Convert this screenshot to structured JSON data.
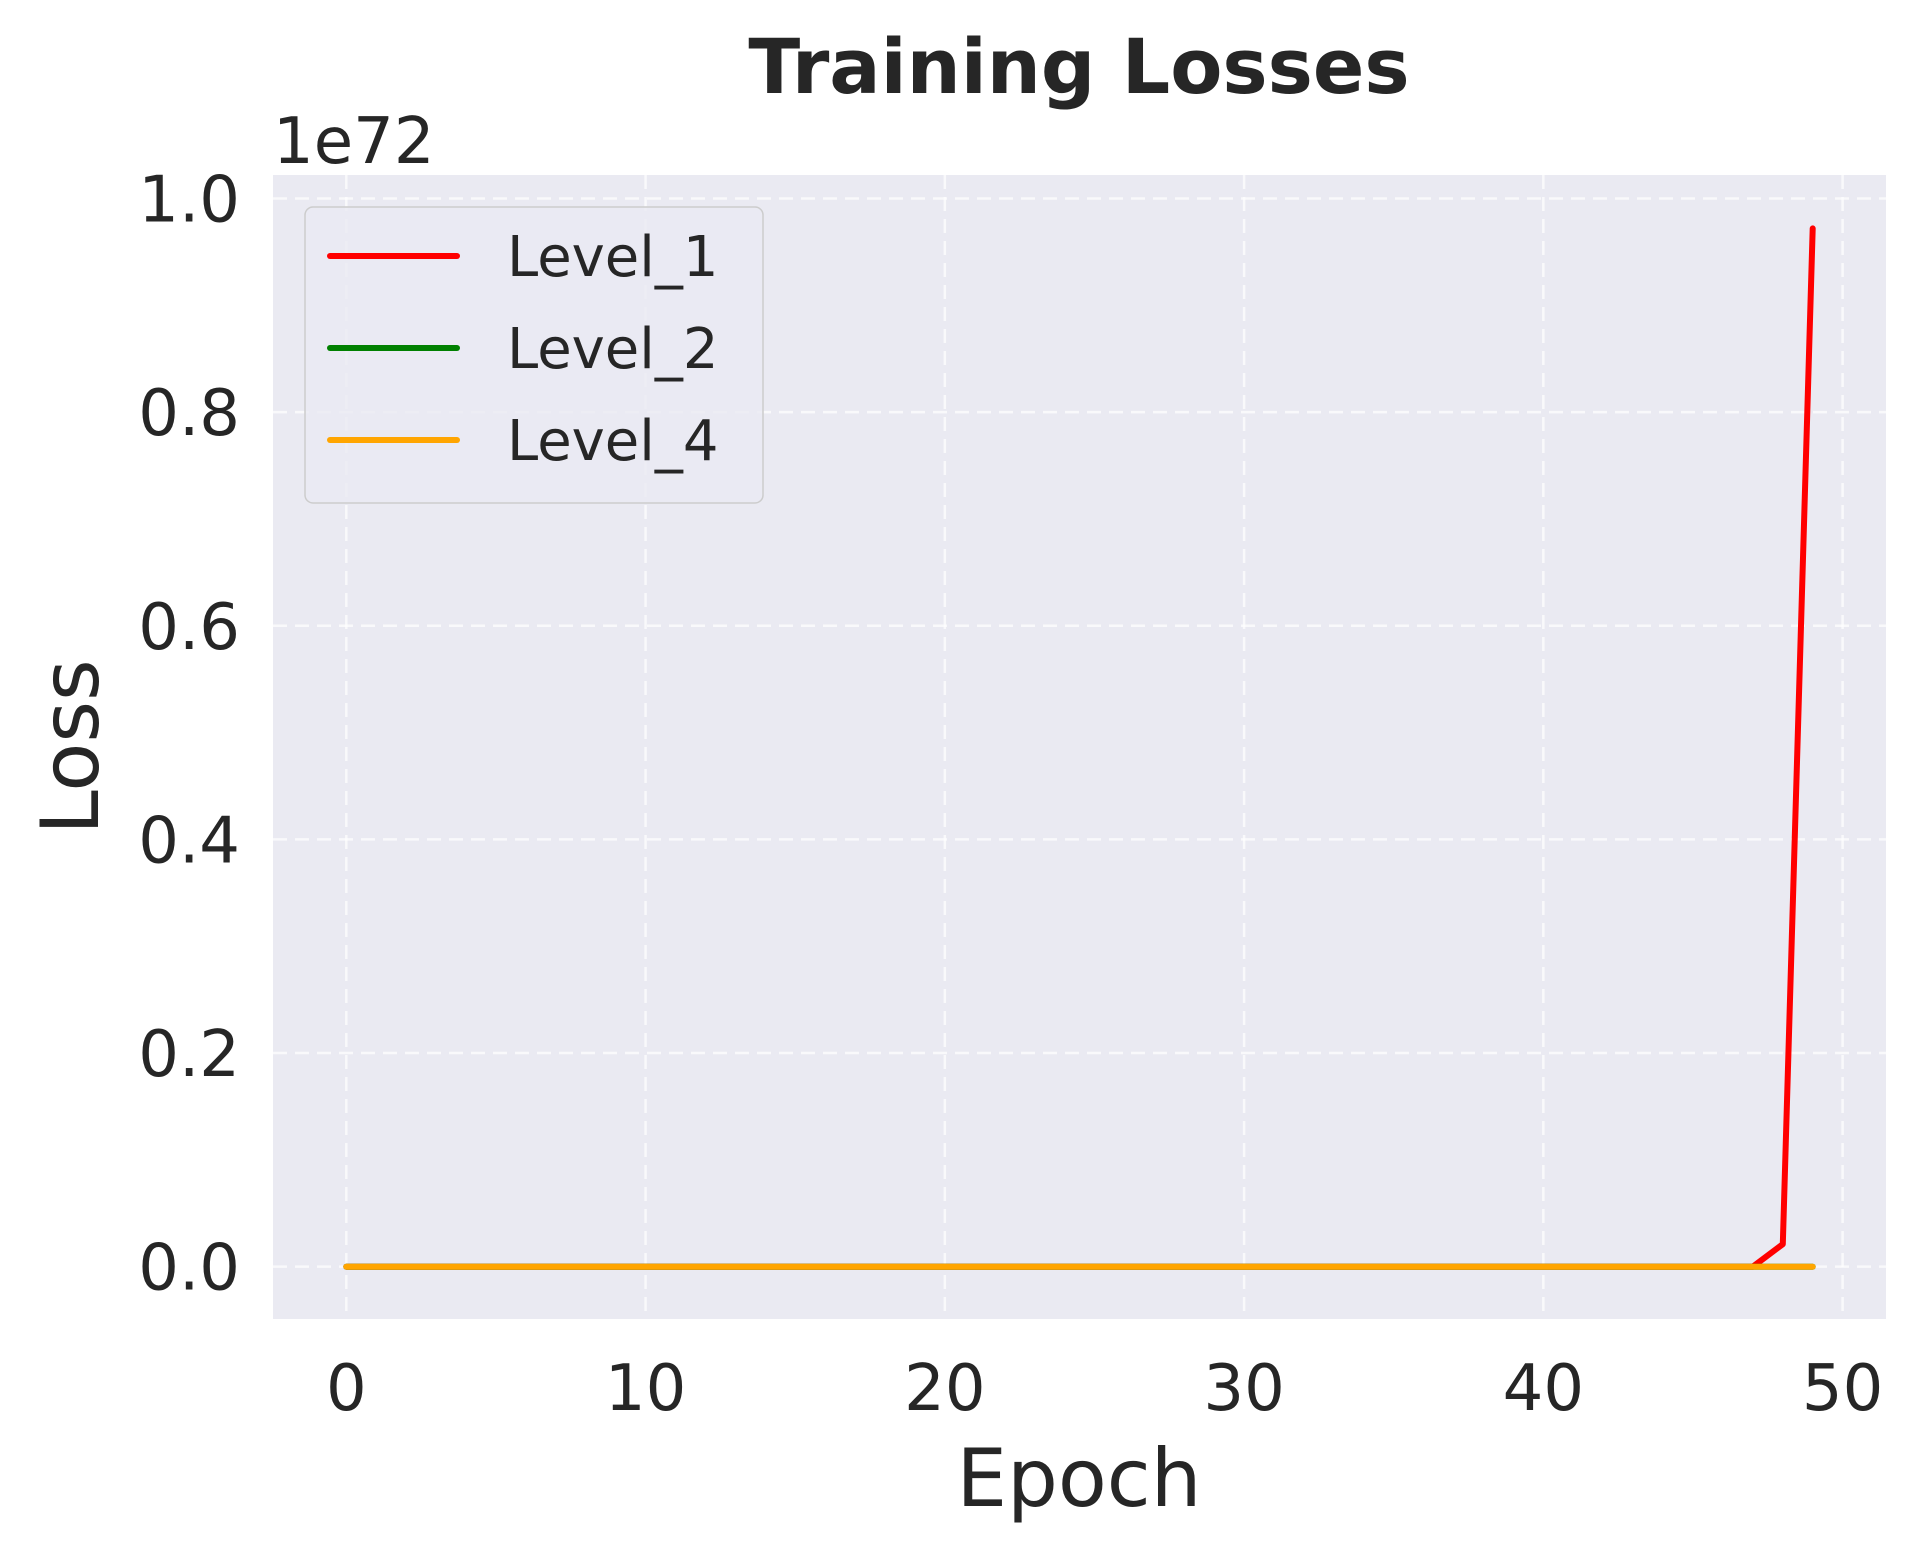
{
  "chart_data": {
    "type": "line",
    "title": "Training Losses",
    "xlabel": "Epoch",
    "ylabel": "Loss",
    "y_offset_label": "1e72",
    "xlim": [
      -2.45,
      51.45
    ],
    "ylim": [
      -0.049,
      1.022
    ],
    "x_ticks": [
      0,
      10,
      20,
      30,
      40,
      50
    ],
    "x_tick_labels": [
      "0",
      "10",
      "20",
      "30",
      "40",
      "50"
    ],
    "y_ticks": [
      0.0,
      0.2,
      0.4,
      0.6,
      0.8,
      1.0
    ],
    "y_tick_labels": [
      "0.0",
      "0.2",
      "0.4",
      "0.6",
      "0.8",
      "1.0"
    ],
    "grid": true,
    "legend_position": "upper left",
    "x": [
      0,
      1,
      2,
      3,
      4,
      5,
      6,
      7,
      8,
      9,
      10,
      11,
      12,
      13,
      14,
      15,
      16,
      17,
      18,
      19,
      20,
      21,
      22,
      23,
      24,
      25,
      26,
      27,
      28,
      29,
      30,
      31,
      32,
      33,
      34,
      35,
      36,
      37,
      38,
      39,
      40,
      41,
      42,
      43,
      44,
      45,
      46,
      47,
      48,
      49
    ],
    "series": [
      {
        "name": "Level_1",
        "color": "#ff0000",
        "values": [
          0,
          0,
          0,
          0,
          0,
          0,
          0,
          0,
          0,
          0,
          0,
          0,
          0,
          0,
          0,
          0,
          0,
          0,
          0,
          0,
          0,
          0,
          0,
          0,
          0,
          0,
          0,
          0,
          0,
          0,
          0,
          0,
          0,
          0,
          0,
          0,
          0,
          0,
          0,
          0,
          0,
          0,
          0,
          0,
          0,
          0,
          0,
          0,
          0.021,
          0.972
        ]
      },
      {
        "name": "Level_2",
        "color": "#008000",
        "values": [
          0,
          0,
          0,
          0,
          0,
          0,
          0,
          0,
          0,
          0,
          0,
          0,
          0,
          0,
          0,
          0,
          0,
          0,
          0,
          0,
          0,
          0,
          0,
          0,
          0,
          0,
          0,
          0,
          0,
          0,
          0,
          0,
          0,
          0,
          0,
          0,
          0,
          0,
          0,
          0,
          0,
          0,
          0,
          0,
          0,
          0,
          0,
          0,
          0,
          0
        ]
      },
      {
        "name": "Level_4",
        "color": "#ffa500",
        "values": [
          0,
          0,
          0,
          0,
          0,
          0,
          0,
          0,
          0,
          0,
          0,
          0,
          0,
          0,
          0,
          0,
          0,
          0,
          0,
          0,
          0,
          0,
          0,
          0,
          0,
          0,
          0,
          0,
          0,
          0,
          0,
          0,
          0,
          0,
          0,
          0,
          0,
          0,
          0,
          0,
          0,
          0,
          0,
          0,
          0,
          0,
          0,
          0,
          0,
          0
        ]
      }
    ],
    "value_scale_note": "values in units of 1e72"
  },
  "style": {
    "plot_background": "#eaeaf2",
    "grid_color": "#ffffff",
    "text_color": "#262626"
  }
}
